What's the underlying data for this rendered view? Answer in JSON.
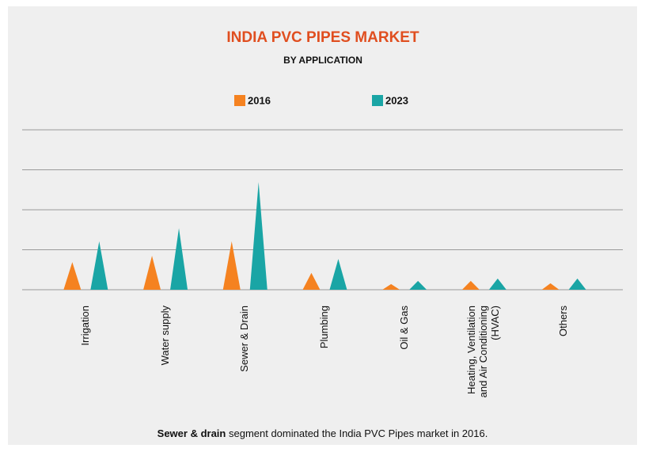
{
  "chart_data": {
    "type": "spike",
    "title": "INDIA PVC PIPES MARKET",
    "subtitle": "BY APPLICATION",
    "categories": [
      "Irrigation",
      "Water supply",
      "Sewer & Drain",
      "Plumbing",
      "Oil & Gas",
      "Heating, Ventilation and Air Conditioning (HVAC)",
      "Others"
    ],
    "series": [
      {
        "name": "2016",
        "color": "#f58220",
        "values": [
          0.69,
          0.85,
          1.21,
          0.42,
          0.14,
          0.22,
          0.16
        ]
      },
      {
        "name": "2023",
        "color": "#1aa5a5",
        "values": [
          1.21,
          1.54,
          2.69,
          0.77,
          0.22,
          0.28,
          0.28
        ]
      }
    ],
    "ylim": [
      0,
      4
    ],
    "yticks": [
      0,
      1,
      2,
      3,
      4
    ],
    "grid": true,
    "footnote_bold": "Sewer & drain",
    "footnote": "segment dominated the India PVC Pipes market in 2016."
  }
}
